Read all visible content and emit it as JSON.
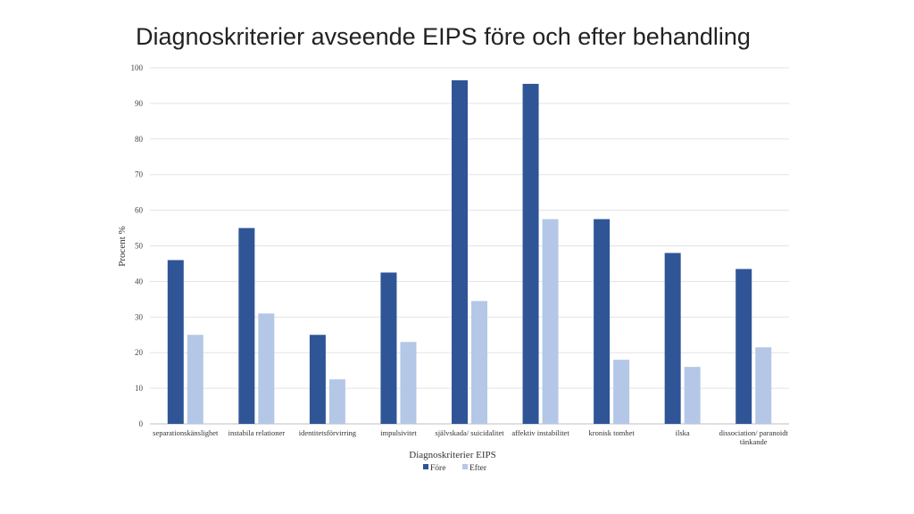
{
  "slide": {
    "title": "Diagnoskriterier avseende EIPS före och efter behandling"
  },
  "chart_data": {
    "type": "bar",
    "title": "",
    "xlabel": "Diagnoskriterier EIPS",
    "ylabel": "Procent %",
    "ylim": [
      0,
      100
    ],
    "yticks": [
      0,
      10,
      20,
      30,
      40,
      50,
      60,
      70,
      80,
      90,
      100
    ],
    "grid": true,
    "legend_position": "bottom",
    "categories": [
      [
        "separationskänslighet"
      ],
      [
        "instabila relationer"
      ],
      [
        "identitetsförvirring"
      ],
      [
        "impulsivitet"
      ],
      [
        "självskada/ suicidalitet"
      ],
      [
        "affektiv instabilitet"
      ],
      [
        "kronisk tomhet"
      ],
      [
        "ilska"
      ],
      [
        "dissociation/ paranoidt",
        "tänkande"
      ]
    ],
    "series": [
      {
        "name": "Före",
        "color": "#2f5597",
        "values": [
          46,
          55,
          25,
          42.5,
          96.5,
          95.5,
          57.5,
          48,
          43.5
        ]
      },
      {
        "name": "Efter",
        "color": "#b4c7e7",
        "values": [
          25,
          31,
          12.5,
          23,
          34.5,
          57.5,
          18,
          16,
          21.5
        ]
      }
    ]
  }
}
